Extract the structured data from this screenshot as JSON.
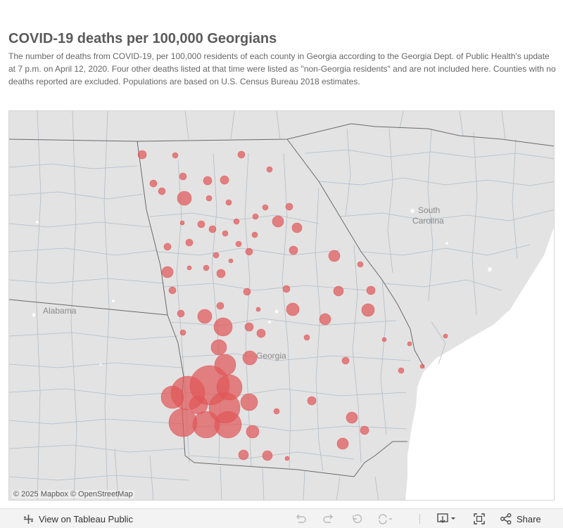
{
  "header": {
    "title": "COVID-19 deaths per 100,000 Georgians",
    "subtitle": "The number of deaths from COVID-19, per 100,000 residents of each county in Georgia according to the Georgia Dept. of Public Health's update at 7 p.m. on April 12, 2020. Four other deaths listed at that time were listed as \"non-Georgia residents\" and are not included here. Counties with no deaths reported are excluded. Populations are based on U.S. Census Bureau 2018 estimates."
  },
  "map": {
    "labels": {
      "alabama": "Alabama",
      "georgia": "Georgia",
      "south_carolina_1": "South",
      "south_carolina_2": "Carolina"
    },
    "attribution": "© 2025 Mapbox  © OpenStreetMap",
    "bubble_color": "#e15759",
    "map_background": "#e3e3e3",
    "ocean_color": "#ffffff",
    "bubble_count": 78
  },
  "toolbar": {
    "view_label": "View on Tableau Public",
    "share_label": "Share",
    "icons": [
      "tableau-logo-icon",
      "undo-icon",
      "redo-icon",
      "revert-icon",
      "refresh-icon",
      "download-icon",
      "fullscreen-icon",
      "share-icon"
    ]
  }
}
